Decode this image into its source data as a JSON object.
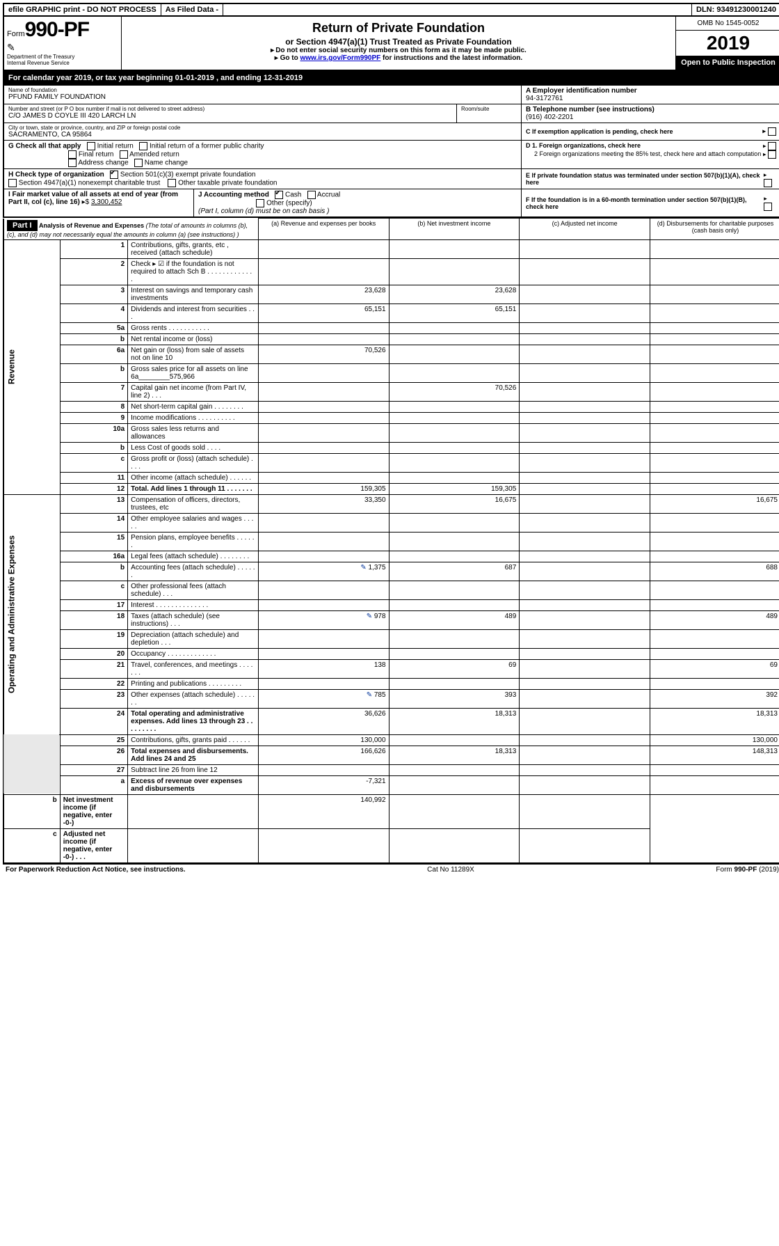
{
  "topbar": {
    "efile": "efile GRAPHIC print - DO NOT PROCESS",
    "asfiled": "As Filed Data -",
    "dln_label": "DLN:",
    "dln": "93491230001240"
  },
  "header": {
    "form_prefix": "Form",
    "form_number": "990-PF",
    "dept": "Department of the Treasury",
    "irs": "Internal Revenue Service",
    "title": "Return of Private Foundation",
    "subtitle": "or Section 4947(a)(1) Trust Treated as Private Foundation",
    "note1": "Do not enter social security numbers on this form as it may be made public.",
    "note2_pre": "Go to ",
    "note2_link": "www.irs.gov/Form990PF",
    "note2_post": " for instructions and the latest information.",
    "omb": "OMB No 1545-0052",
    "year": "2019",
    "open_public": "Open to Public Inspection"
  },
  "calyear": {
    "text_pre": "For calendar year 2019, or tax year beginning ",
    "begin": "01-01-2019",
    "mid": " , and ending ",
    "end": "12-31-2019"
  },
  "name_block": {
    "label": "Name of foundation",
    "name": "PFUND FAMILY FOUNDATION",
    "addr_label": "Number and street (or P O  box number if mail is not delivered to street address)",
    "addr": "C/O JAMES D COYLE III 420 LARCH LN",
    "room_label": "Room/suite",
    "city_label": "City or town, state or province, country, and ZIP or foreign postal code",
    "city": "SACRAMENTO, CA  95864"
  },
  "right_block": {
    "a_label": "A Employer identification number",
    "a_val": "94-3172761",
    "b_label": "B Telephone number (see instructions)",
    "b_val": "(916) 402-2201",
    "c_label": "C If exemption application is pending, check here",
    "d1": "D 1. Foreign organizations, check here",
    "d2": "2  Foreign organizations meeting the 85% test, check here and attach computation",
    "e": "E  If private foundation status was terminated under section 507(b)(1)(A), check here",
    "f": "F  If the foundation is in a 60-month termination under section 507(b)(1)(B), check here"
  },
  "g_block": {
    "label": "G Check all that apply",
    "opts": [
      "Initial return",
      "Initial return of a former public charity",
      "Final return",
      "Amended return",
      "Address change",
      "Name change"
    ]
  },
  "h_block": {
    "label": "H Check type of organization",
    "opt1": "Section 501(c)(3) exempt private foundation",
    "opt2": "Section 4947(a)(1) nonexempt charitable trust",
    "opt3": "Other taxable private foundation"
  },
  "i_block": {
    "label": "I Fair market value of all assets at end of year (from Part II, col  (c), line 16)",
    "val_label": "▸$ ",
    "val": "3,300,452"
  },
  "j_block": {
    "label": "J Accounting method",
    "cash": "Cash",
    "accrual": "Accrual",
    "other": "Other (specify)",
    "note": "(Part I, column (d) must be on cash basis )"
  },
  "part1": {
    "title": "Part I",
    "header": "Analysis of Revenue and Expenses",
    "header_note": "(The total of amounts in columns (b), (c), and (d) may not necessarily equal the amounts in column (a) (see instructions) )",
    "cols": {
      "a": "(a) Revenue and expenses per books",
      "b": "(b) Net investment income",
      "c": "(c) Adjusted net income",
      "d": "(d) Disbursements for charitable purposes (cash basis only)"
    }
  },
  "vert": {
    "rev": "Revenue",
    "exp": "Operating and Administrative Expenses"
  },
  "rows": [
    {
      "n": "1",
      "d": "Contributions, gifts, grants, etc , received (attach schedule)",
      "a": "",
      "b": "",
      "c": "",
      "dd": ""
    },
    {
      "n": "2",
      "d": "Check ▸ ☑ if the foundation is not required to attach Sch  B     .  .  .  .  .  .  .  .  .  .  .  .  .",
      "a": "",
      "b": "",
      "c": "",
      "dd": ""
    },
    {
      "n": "3",
      "d": "Interest on savings and temporary cash investments",
      "a": "23,628",
      "b": "23,628",
      "c": "",
      "dd": ""
    },
    {
      "n": "4",
      "d": "Dividends and interest from securities   .  .  .",
      "a": "65,151",
      "b": "65,151",
      "c": "",
      "dd": ""
    },
    {
      "n": "5a",
      "d": "Gross rents     .  .  .  .  .  .  .  .  .  .  .",
      "a": "",
      "b": "",
      "c": "",
      "dd": ""
    },
    {
      "n": "b",
      "d": "Net rental income or (loss)  ",
      "a": "",
      "b": "",
      "c": "",
      "dd": ""
    },
    {
      "n": "6a",
      "d": "Net gain or (loss) from sale of assets not on line 10",
      "a": "70,526",
      "b": "",
      "c": "",
      "dd": ""
    },
    {
      "n": "b",
      "d": "Gross sales price for all assets on line 6a________575,966",
      "a": "",
      "b": "",
      "c": "",
      "dd": ""
    },
    {
      "n": "7",
      "d": "Capital gain net income (from Part IV, line 2)   .  .  .",
      "a": "",
      "b": "70,526",
      "c": "",
      "dd": ""
    },
    {
      "n": "8",
      "d": "Net short-term capital gain  .  .  .  .  .  .  .  .",
      "a": "",
      "b": "",
      "c": "",
      "dd": ""
    },
    {
      "n": "9",
      "d": "Income modifications .  .  .  .  .  .  .  .  .  .",
      "a": "",
      "b": "",
      "c": "",
      "dd": ""
    },
    {
      "n": "10a",
      "d": "Gross sales less returns and allowances",
      "a": "",
      "b": "",
      "c": "",
      "dd": ""
    },
    {
      "n": "b",
      "d": "Less  Cost of goods sold   .  .  .  .",
      "a": "",
      "b": "",
      "c": "",
      "dd": ""
    },
    {
      "n": "c",
      "d": "Gross profit or (loss) (attach schedule)   .  .  .  .",
      "a": "",
      "b": "",
      "c": "",
      "dd": ""
    },
    {
      "n": "11",
      "d": "Other income (attach schedule)   .  .  .  .  .  .",
      "a": "",
      "b": "",
      "c": "",
      "dd": ""
    },
    {
      "n": "12",
      "d": "Total. Add lines 1 through 11   .  .  .  .  .  .  .",
      "a": "159,305",
      "b": "159,305",
      "c": "",
      "dd": "",
      "bold": true
    },
    {
      "n": "13",
      "d": "Compensation of officers, directors, trustees, etc",
      "a": "33,350",
      "b": "16,675",
      "c": "",
      "dd": "16,675"
    },
    {
      "n": "14",
      "d": "Other employee salaries and wages   .  .  .  .  .",
      "a": "",
      "b": "",
      "c": "",
      "dd": ""
    },
    {
      "n": "15",
      "d": "Pension plans, employee benefits  .  .  .  .  .  .",
      "a": "",
      "b": "",
      "c": "",
      "dd": ""
    },
    {
      "n": "16a",
      "d": "Legal fees (attach schedule) .  .  .  .  .  .  .  .",
      "a": "",
      "b": "",
      "c": "",
      "dd": ""
    },
    {
      "n": "b",
      "d": "Accounting fees (attach schedule) .  .  .  .  .  .",
      "a": "1,375",
      "b": "687",
      "c": "",
      "dd": "688",
      "icon": true
    },
    {
      "n": "c",
      "d": "Other professional fees (attach schedule)   .  .  .",
      "a": "",
      "b": "",
      "c": "",
      "dd": ""
    },
    {
      "n": "17",
      "d": "Interest  .  .  .  .  .  .  .  .  .  .  .  .  .  .",
      "a": "",
      "b": "",
      "c": "",
      "dd": ""
    },
    {
      "n": "18",
      "d": "Taxes (attach schedule) (see instructions)    .  .  .",
      "a": "978",
      "b": "489",
      "c": "",
      "dd": "489",
      "icon": true
    },
    {
      "n": "19",
      "d": "Depreciation (attach schedule) and depletion   .  .  .",
      "a": "",
      "b": "",
      "c": "",
      "dd": ""
    },
    {
      "n": "20",
      "d": "Occupancy   .  .  .  .  .  .  .  .  .  .  .  .  .",
      "a": "",
      "b": "",
      "c": "",
      "dd": ""
    },
    {
      "n": "21",
      "d": "Travel, conferences, and meetings .  .  .  .  .  .  .",
      "a": "138",
      "b": "69",
      "c": "",
      "dd": "69"
    },
    {
      "n": "22",
      "d": "Printing and publications .  .  .  .  .  .  .  .  .",
      "a": "",
      "b": "",
      "c": "",
      "dd": ""
    },
    {
      "n": "23",
      "d": "Other expenses (attach schedule) .  .  .  .  .  .  .",
      "a": "785",
      "b": "393",
      "c": "",
      "dd": "392",
      "icon": true
    },
    {
      "n": "24",
      "d": "Total operating and administrative expenses. Add lines 13 through 23   .  .  .  .  .  .  .  .  .",
      "a": "36,626",
      "b": "18,313",
      "c": "",
      "dd": "18,313",
      "bold": true
    },
    {
      "n": "25",
      "d": "Contributions, gifts, grants paid   .  .  .  .  .  .",
      "a": "130,000",
      "b": "",
      "c": "",
      "dd": "130,000"
    },
    {
      "n": "26",
      "d": "Total expenses and disbursements. Add lines 24 and 25",
      "a": "166,626",
      "b": "18,313",
      "c": "",
      "dd": "148,313",
      "bold": true
    },
    {
      "n": "27",
      "d": "Subtract line 26 from line 12",
      "a": "",
      "b": "",
      "c": "",
      "dd": ""
    },
    {
      "n": "a",
      "d": "Excess of revenue over expenses and disbursements",
      "a": "-7,321",
      "b": "",
      "c": "",
      "dd": "",
      "bold": true
    },
    {
      "n": "b",
      "d": "Net investment income (if negative, enter -0-)",
      "a": "",
      "b": "140,992",
      "c": "",
      "dd": "",
      "bold": true
    },
    {
      "n": "c",
      "d": "Adjusted net income (if negative, enter -0-)   .  .  .",
      "a": "",
      "b": "",
      "c": "",
      "dd": "",
      "bold": true
    }
  ],
  "footer": {
    "left": "For Paperwork Reduction Act Notice, see instructions.",
    "mid": "Cat  No  11289X",
    "right": "Form 990-PF (2019)"
  }
}
